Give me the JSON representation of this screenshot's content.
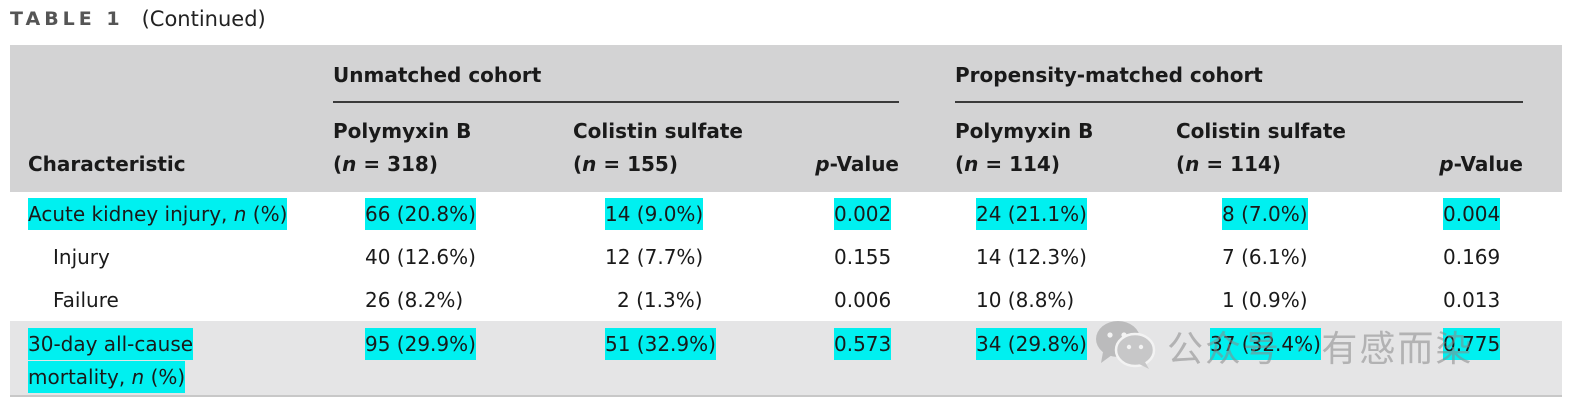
{
  "caption": {
    "label": "TABLE 1",
    "continued": "(Continued)"
  },
  "header": {
    "characteristic": "Characteristic",
    "unmatched": {
      "title": "Unmatched cohort",
      "polymyxin": {
        "name": "Polymyxin B",
        "n_open": "(",
        "n_sym": "n",
        "n_rest": " = 318)"
      },
      "colistin": {
        "name": "Colistin sulfate",
        "n_open": "(",
        "n_sym": "n",
        "n_rest": " = 155)"
      },
      "pvalue": {
        "p": "p",
        "rest": "-Value"
      }
    },
    "matched": {
      "title": "Propensity-matched cohort",
      "polymyxin": {
        "name": "Polymyxin B",
        "n_open": "(",
        "n_sym": "n",
        "n_rest": " = 114)"
      },
      "colistin": {
        "name": "Colistin sulfate",
        "n_open": "(",
        "n_sym": "n",
        "n_rest": " = 114)"
      },
      "pvalue": {
        "p": "p",
        "rest": "-Value"
      }
    }
  },
  "rows": [
    {
      "label_pre": "Acute kidney injury, ",
      "label_n": "n",
      "label_post": " (%)",
      "u_pb": "66 (20.8%)",
      "u_cs": "14 (9.0%)",
      "u_p": "0.002",
      "m_pb": "24 (21.1%)",
      "m_cs": "8 (7.0%)",
      "m_p": "0.004"
    },
    {
      "label": "Injury",
      "u_pb": "40 (12.6%)",
      "u_cs": "12 (7.7%)",
      "u_p": "0.155",
      "m_pb": "14 (12.3%)",
      "m_cs": "7 (6.1%)",
      "m_p": "0.169"
    },
    {
      "label": "Failure",
      "u_pb": "26 (8.2%)",
      "u_cs": "2 (1.3%)",
      "u_p": "0.006",
      "m_pb": "10 (8.8%)",
      "m_cs": "1 (0.9%)",
      "m_p": "0.013"
    },
    {
      "label_line1": "30-day all-cause",
      "label_pre": "mortality, ",
      "label_n": "n",
      "label_post": " (%)",
      "u_pb": "95 (29.9%)",
      "u_cs": "51 (32.9%)",
      "u_p": "0.573",
      "m_pb": "34 (29.8%)",
      "m_cs": "37 (32.4%)",
      "m_p": "0.775"
    }
  ],
  "watermark": {
    "icon": "wechat-icon",
    "text": "公众号 · 有感而染"
  },
  "colors": {
    "highlight": "#00f0f0",
    "header_bg": "#d3d3d4",
    "row_shade": "#e5e5e6"
  }
}
